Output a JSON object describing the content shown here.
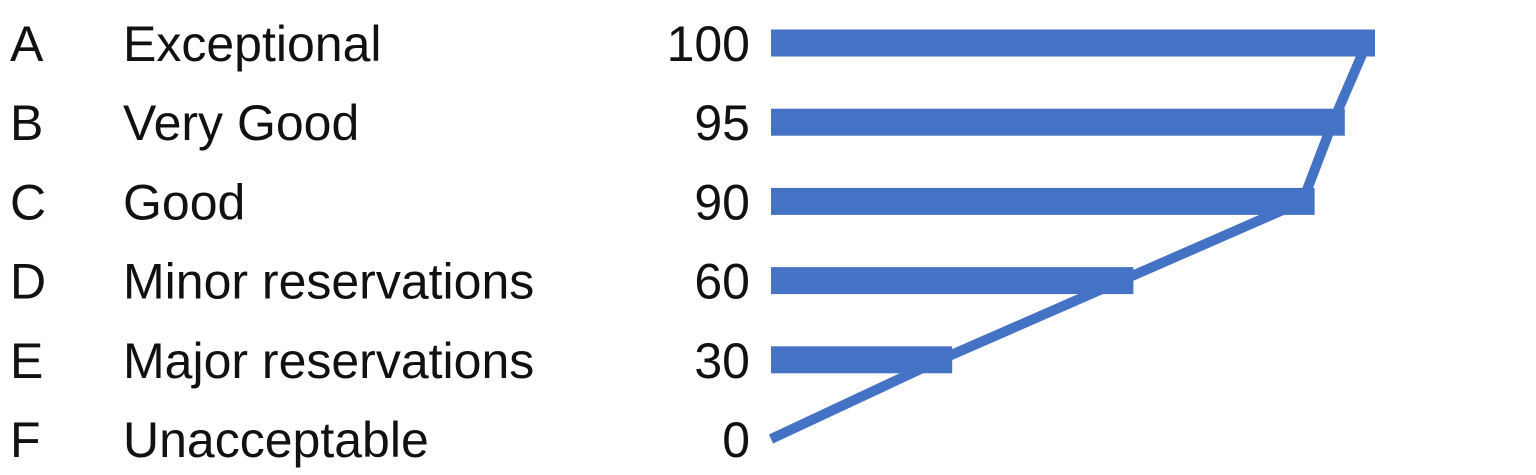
{
  "chart_data": {
    "type": "bar",
    "orientation": "horizontal",
    "categories": [
      "A",
      "B",
      "C",
      "D",
      "E",
      "F"
    ],
    "descriptions": [
      "Exceptional",
      "Very Good",
      "Good",
      "Minor reservations",
      "Major reservations",
      "Unacceptable"
    ],
    "values": [
      100,
      95,
      90,
      60,
      30,
      0
    ],
    "value_labels": [
      "100",
      "95",
      "90",
      "60",
      "30",
      "0"
    ],
    "line": {
      "x": [
        0,
        30,
        60,
        90,
        95,
        100
      ]
    },
    "xlim": [
      0,
      100
    ],
    "grid": false,
    "legend": "none",
    "colors": {
      "bar": "#4472c4",
      "line": "#4472c4",
      "text": "#111111"
    }
  }
}
